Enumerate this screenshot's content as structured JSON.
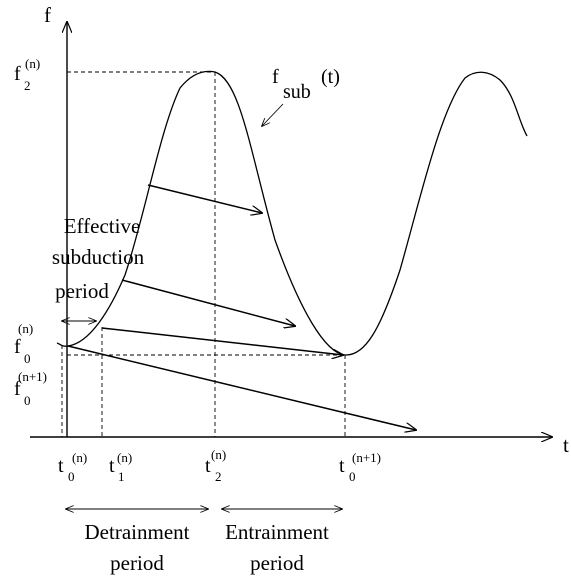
{
  "axes": {
    "y_label": "f",
    "x_label": "t"
  },
  "curve_label": {
    "main": "f",
    "sub": "sub",
    "arg": "(t)"
  },
  "y_ticks": [
    {
      "main": "f",
      "sub": "2",
      "sup": "(n)"
    },
    {
      "main": "f",
      "sub": "0",
      "sup": "(n)"
    },
    {
      "main": "f",
      "sub": "0",
      "sup": "(n+1)"
    }
  ],
  "x_ticks": [
    {
      "main": "t",
      "sub": "0",
      "sup": "(n)"
    },
    {
      "main": "t",
      "sub": "1",
      "sup": "(n)"
    },
    {
      "main": "t",
      "sub": "2",
      "sup": "(n)"
    },
    {
      "main": "t",
      "sub": "0",
      "sup": "(n+1)"
    }
  ],
  "effective_label": [
    "Effective",
    "subduction",
    "period"
  ],
  "detrainment_label": [
    "Detrainment",
    "period"
  ],
  "entrainment_label": [
    "Entrainment",
    "period"
  ]
}
